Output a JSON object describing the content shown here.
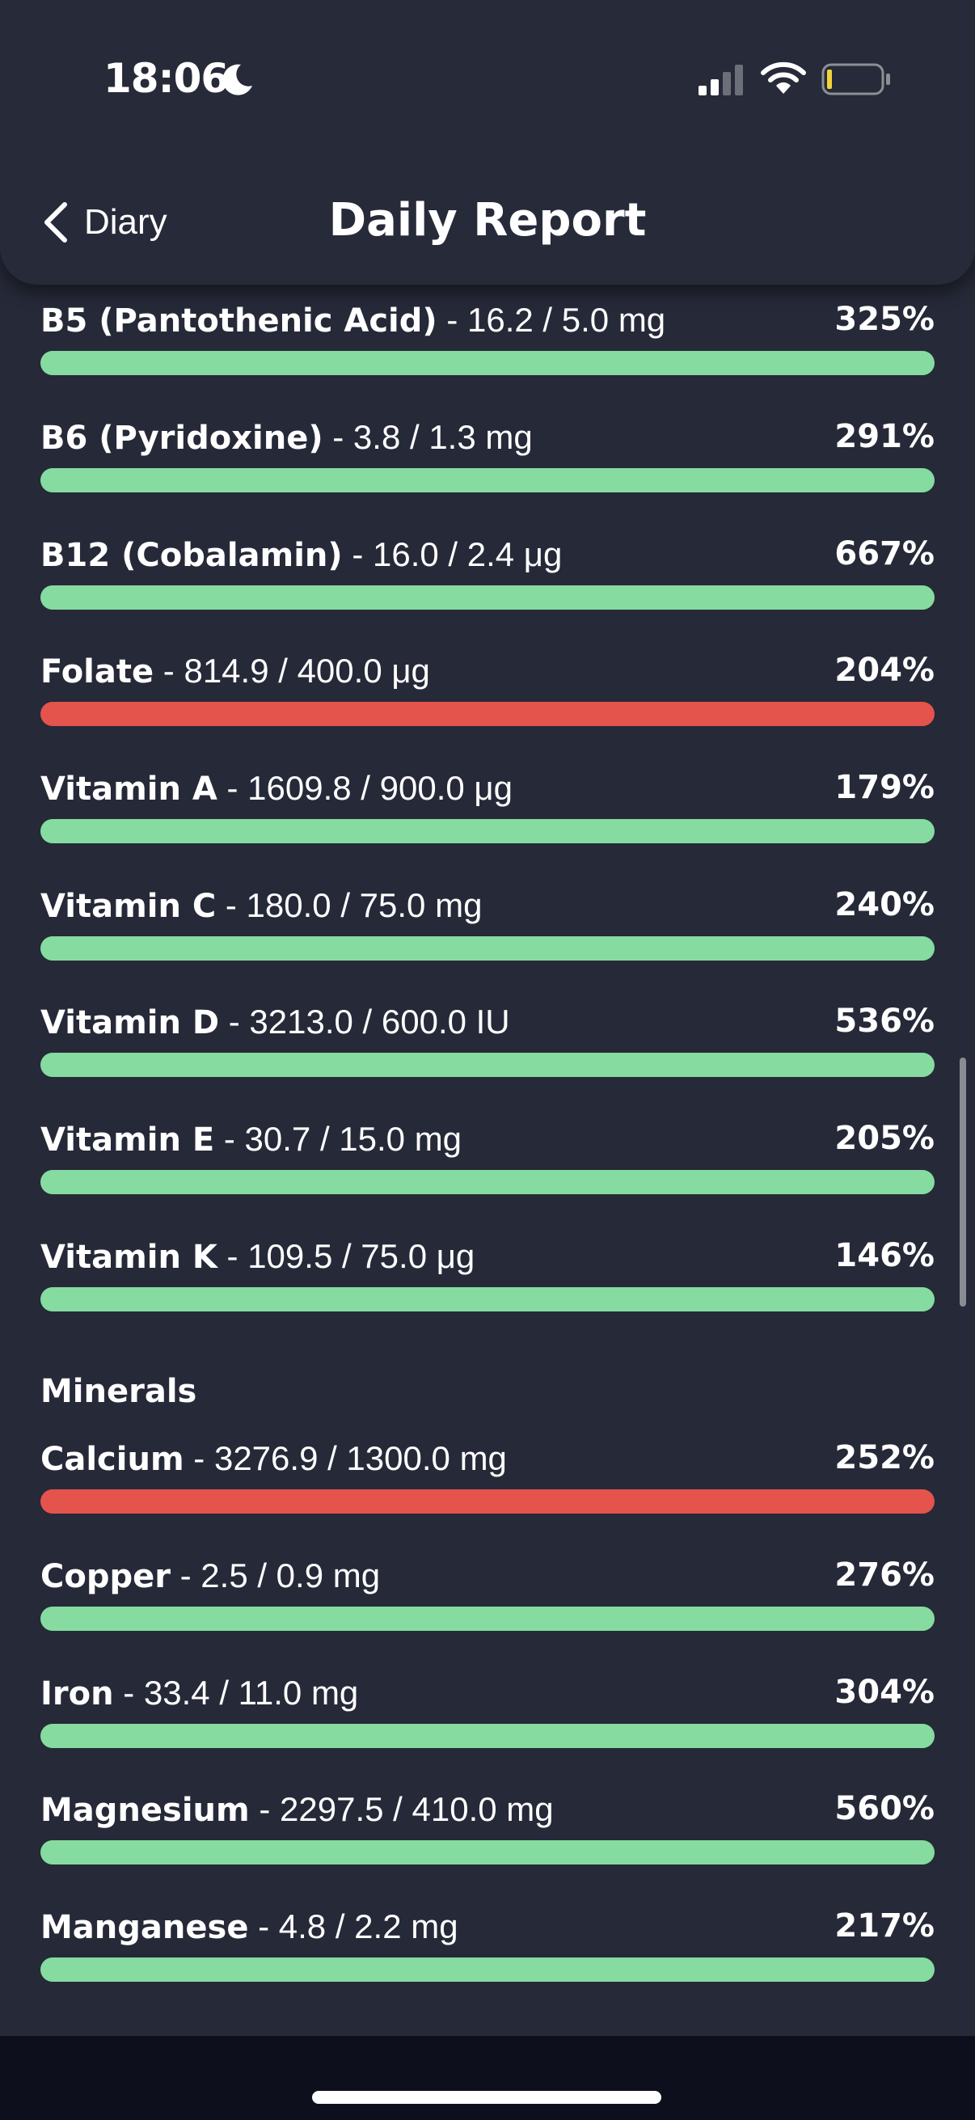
{
  "status_bar": {
    "time": "18:06",
    "moon_icon": "moon-icon",
    "signal_icon": "cellular-signal-icon",
    "wifi_icon": "wifi-icon",
    "battery_icon": "battery-low-icon"
  },
  "header": {
    "back_label": "Diary",
    "title": "Daily Report"
  },
  "colors": {
    "ok": "#86dba0",
    "over": "#e4534c",
    "background": "#262938"
  },
  "nutrients": [
    {
      "name": "B5 (Pantothenic Acid)",
      "detail": " - 16.2 / 5.0 mg",
      "percent": "325%",
      "status": "ok"
    },
    {
      "name": "B6 (Pyridoxine)",
      "detail": " - 3.8 / 1.3 mg",
      "percent": "291%",
      "status": "ok"
    },
    {
      "name": "B12 (Cobalamin)",
      "detail": " - 16.0 / 2.4 μg",
      "percent": "667%",
      "status": "ok"
    },
    {
      "name": "Folate",
      "detail": " - 814.9 / 400.0 μg",
      "percent": "204%",
      "status": "over"
    },
    {
      "name": "Vitamin A",
      "detail": " - 1609.8 / 900.0 μg",
      "percent": "179%",
      "status": "ok"
    },
    {
      "name": "Vitamin C",
      "detail": " - 180.0 / 75.0 mg",
      "percent": "240%",
      "status": "ok"
    },
    {
      "name": "Vitamin D",
      "detail": " - 3213.0 / 600.0 IU",
      "percent": "536%",
      "status": "ok"
    },
    {
      "name": "Vitamin E",
      "detail": " - 30.7 / 15.0 mg",
      "percent": "205%",
      "status": "ok"
    },
    {
      "name": "Vitamin K",
      "detail": " - 109.5 / 75.0 μg",
      "percent": "146%",
      "status": "ok"
    }
  ],
  "minerals_heading": "Minerals",
  "minerals": [
    {
      "name": "Calcium",
      "detail": " - 3276.9 / 1300.0 mg",
      "percent": "252%",
      "status": "over"
    },
    {
      "name": "Copper",
      "detail": " - 2.5 / 0.9 mg",
      "percent": "276%",
      "status": "ok"
    },
    {
      "name": "Iron",
      "detail": " - 33.4 / 11.0 mg",
      "percent": "304%",
      "status": "ok"
    },
    {
      "name": "Magnesium",
      "detail": " - 2297.5 / 410.0 mg",
      "percent": "560%",
      "status": "ok"
    },
    {
      "name": "Manganese",
      "detail": " - 4.8 / 2.2 mg",
      "percent": "217%",
      "status": "ok"
    }
  ]
}
